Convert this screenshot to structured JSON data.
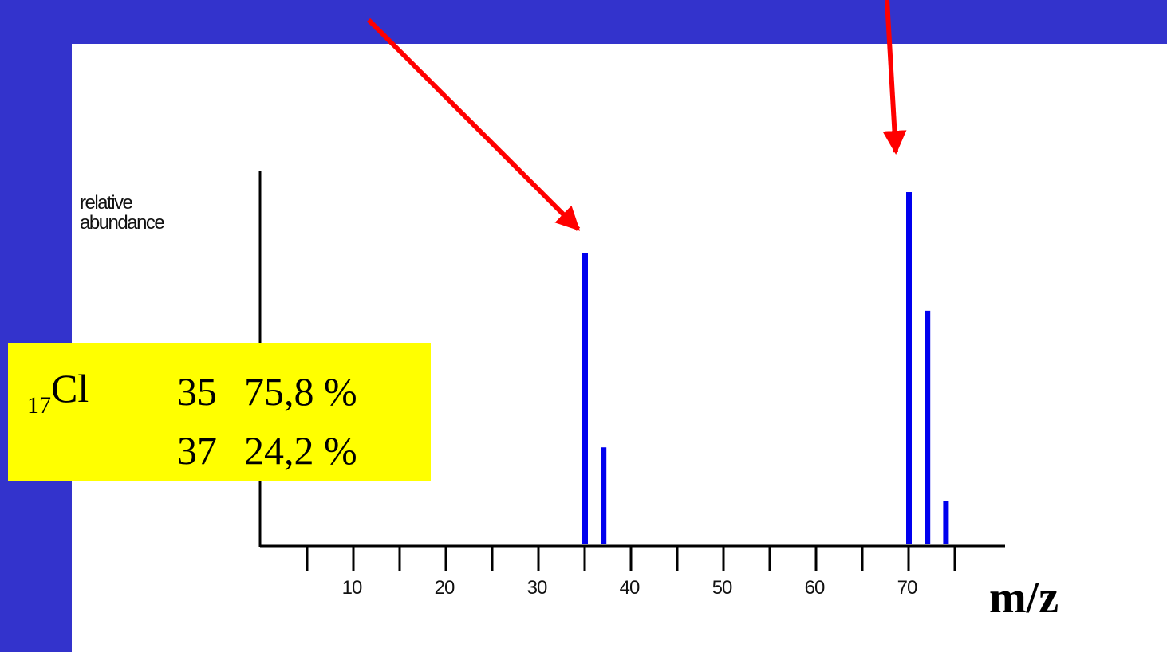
{
  "chart_data": {
    "type": "bar",
    "xlabel": "m/z",
    "ylabel": "relative\nabundance",
    "x_ticks": [
      10,
      20,
      30,
      40,
      50,
      60,
      70
    ],
    "xlim": [
      0,
      75
    ],
    "ylim": [
      0,
      1
    ],
    "grid": false,
    "bars": [
      {
        "x": 35,
        "y": 0.81
      },
      {
        "x": 37,
        "y": 0.27
      },
      {
        "x": 70,
        "y": 0.98
      },
      {
        "x": 72,
        "y": 0.65
      },
      {
        "x": 74,
        "y": 0.12
      }
    ],
    "bar_color": "#0000ee",
    "arrow_color": "#ff0000",
    "arrows_point_to": [
      35,
      70
    ]
  },
  "isotope_box": {
    "element_symbol": "Cl",
    "atomic_number": "17",
    "isotopes": [
      {
        "mass": "35",
        "abundance": "75,8 %"
      },
      {
        "mass": "37",
        "abundance": "24,2 %"
      }
    ],
    "background": "#ffff00"
  },
  "colors": {
    "background": "#3333cc",
    "panel": "#ffffff"
  }
}
